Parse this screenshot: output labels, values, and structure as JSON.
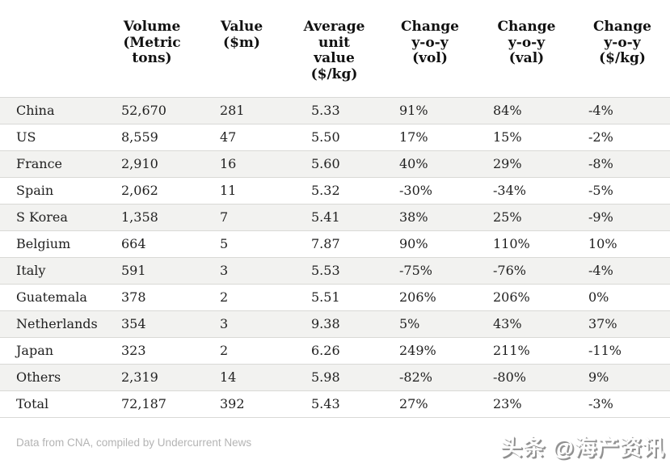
{
  "chart_data": {
    "type": "table",
    "columns": [
      "",
      "Volume (Metric tons)",
      "Value ($m)",
      "Average unit value ($/kg)",
      "Change y-o-y (vol)",
      "Change y-o-y (val)",
      "Change y-o-y ($/kg)"
    ],
    "rows": [
      [
        "China",
        "52,670",
        "281",
        "5.33",
        "91%",
        "84%",
        "-4%"
      ],
      [
        "US",
        "8,559",
        "47",
        "5.50",
        "17%",
        "15%",
        "-2%"
      ],
      [
        "France",
        "2,910",
        "16",
        "5.60",
        "40%",
        "29%",
        "-8%"
      ],
      [
        "Spain",
        "2,062",
        "11",
        "5.32",
        "-30%",
        "-34%",
        "-5%"
      ],
      [
        "S Korea",
        "1,358",
        "7",
        "5.41",
        "38%",
        "25%",
        "-9%"
      ],
      [
        "Belgium",
        "664",
        "5",
        "7.87",
        "90%",
        "110%",
        "10%"
      ],
      [
        "Italy",
        "591",
        "3",
        "5.53",
        "-75%",
        "-76%",
        "-4%"
      ],
      [
        "Guatemala",
        "378",
        "2",
        "5.51",
        "206%",
        "206%",
        "0%"
      ],
      [
        "Netherlands",
        "354",
        "3",
        "9.38",
        "5%",
        "43%",
        "37%"
      ],
      [
        "Japan",
        "323",
        "2",
        "6.26",
        "249%",
        "211%",
        "-11%"
      ],
      [
        "Others",
        "2,319",
        "14",
        "5.98",
        "-82%",
        "-80%",
        "9%"
      ],
      [
        "Total",
        "72,187",
        "392",
        "5.43",
        "27%",
        "23%",
        "-3%"
      ]
    ],
    "source": "Data from CNA, compiled by Undercurrent News",
    "layout": {
      "striped": true,
      "zebra_color": "#f2f2f0",
      "border_color": "#d9d9d6",
      "header_text_color": "#111111",
      "body_text_color": "#212121",
      "source_text_color": "#b4b4b4"
    }
  },
  "footer": {
    "watermark": "头条 @海产资讯"
  }
}
